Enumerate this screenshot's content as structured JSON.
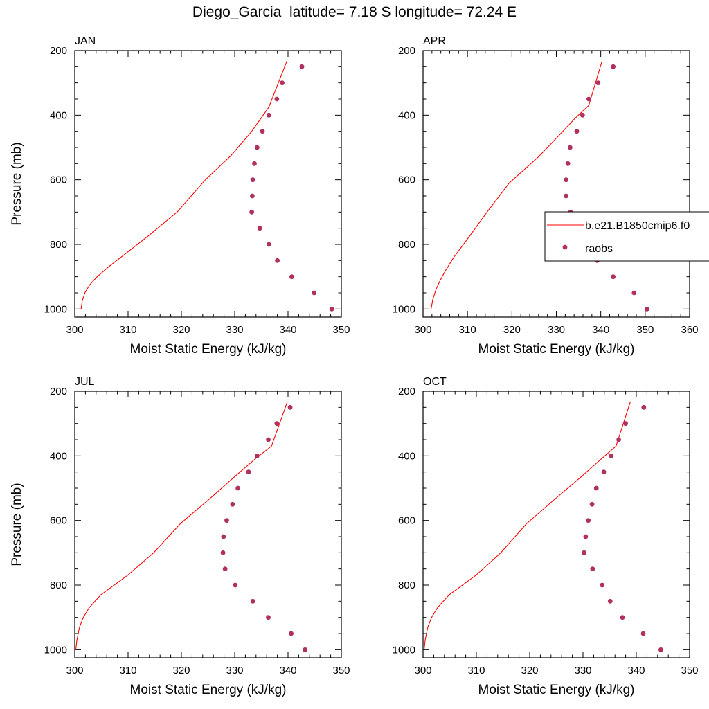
{
  "title": "Diego_Garcia  latitude= 7.18 S longitude= 72.24 E",
  "colors": {
    "model": "#ff0000",
    "raobs": "#b03060",
    "axis": "#000000"
  },
  "legend": {
    "model_label": "b.e21.B1850cmip6.f0",
    "obs_label": "raobs"
  },
  "chart_data": [
    {
      "type": "line",
      "panel": "JAN",
      "xlabel": "Moist Static Energy (kJ/kg)",
      "ylabel": "Pressure (mb)",
      "xlim": [
        300,
        350
      ],
      "ylim": [
        1025,
        200
      ],
      "y_reversed": true,
      "xticks": [
        300,
        310,
        320,
        330,
        340,
        350
      ],
      "yticks": [
        200,
        400,
        600,
        800,
        1000
      ],
      "series": [
        {
          "name": "b.e21.B1850cmip6.f0",
          "style": "line",
          "x": [
            301.2,
            301.4,
            301.9,
            302.8,
            304.2,
            306.3,
            309.8,
            313.7,
            319.2,
            324.5,
            329.3,
            333.2,
            336.4,
            339.8
          ],
          "y": [
            1000,
            975,
            950,
            925,
            900,
            870,
            825,
            775,
            700,
            600,
            525,
            450,
            375,
            232
          ]
        },
        {
          "name": "raobs",
          "style": "markers",
          "x": [
            348.2,
            344.9,
            340.7,
            338.0,
            336.4,
            334.7,
            333.2,
            333.3,
            333.4,
            333.7,
            334.2,
            335.2,
            336.4,
            337.9,
            338.9,
            342.6
          ],
          "y": [
            1000,
            950,
            900,
            850,
            800,
            750,
            700,
            650,
            600,
            550,
            500,
            450,
            400,
            350,
            300,
            250
          ]
        }
      ]
    },
    {
      "type": "line",
      "panel": "APR",
      "xlabel": "Moist Static Energy (kJ/kg)",
      "ylabel": "",
      "xlim": [
        300,
        360
      ],
      "ylim": [
        1025,
        200
      ],
      "y_reversed": true,
      "xticks": [
        300,
        310,
        320,
        330,
        340,
        350,
        360
      ],
      "yticks": [
        200,
        400,
        600,
        800,
        1000
      ],
      "series": [
        {
          "name": "b.e21.B1850cmip6.f0",
          "style": "line",
          "x": [
            301.8,
            302.2,
            302.9,
            303.9,
            305.1,
            306.9,
            310.7,
            314.4,
            319.4,
            325.9,
            330.8,
            334.2,
            337.3,
            340.3
          ],
          "y": [
            1000,
            970,
            940,
            910,
            880,
            840,
            770,
            700,
            610,
            530,
            460,
            410,
            370,
            232
          ]
        },
        {
          "name": "raobs",
          "style": "markers",
          "x": [
            350.4,
            347.5,
            342.8,
            339.2,
            336.0,
            334.5,
            333.2,
            332.2,
            332.2,
            332.6,
            333.1,
            334.6,
            335.9,
            337.3,
            339.4,
            342.8
          ],
          "y": [
            1000,
            950,
            900,
            850,
            800,
            750,
            700,
            650,
            600,
            550,
            500,
            450,
            400,
            350,
            300,
            250
          ]
        }
      ]
    },
    {
      "type": "line",
      "panel": "JUL",
      "xlabel": "Moist Static Energy (kJ/kg)",
      "ylabel": "Pressure (mb)",
      "xlim": [
        300,
        350
      ],
      "ylim": [
        1025,
        200
      ],
      "y_reversed": true,
      "xticks": [
        300,
        310,
        320,
        330,
        340,
        350
      ],
      "yticks": [
        200,
        400,
        600,
        800,
        1000
      ],
      "series": [
        {
          "name": "b.e21.B1850cmip6.f0",
          "style": "line",
          "x": [
            300.2,
            300.4,
            300.9,
            301.6,
            302.7,
            304.9,
            309.9,
            314.8,
            319.8,
            325.5,
            330.3,
            333.8,
            336.9,
            339.9
          ],
          "y": [
            1000,
            970,
            930,
            900,
            870,
            830,
            770,
            700,
            610,
            530,
            460,
            410,
            370,
            232
          ]
        },
        {
          "name": "raobs",
          "style": "markers",
          "x": [
            343.2,
            340.6,
            336.3,
            333.4,
            330.1,
            328.2,
            327.8,
            327.9,
            328.5,
            329.6,
            330.6,
            332.6,
            334.2,
            336.3,
            337.9,
            340.4
          ],
          "y": [
            1000,
            950,
            900,
            850,
            800,
            750,
            700,
            650,
            600,
            550,
            500,
            450,
            400,
            350,
            300,
            250
          ]
        }
      ]
    },
    {
      "type": "line",
      "panel": "OCT",
      "xlabel": "Moist Static Energy (kJ/kg)",
      "ylabel": "",
      "xlim": [
        300,
        350
      ],
      "ylim": [
        1025,
        200
      ],
      "y_reversed": true,
      "xticks": [
        300,
        310,
        320,
        330,
        340,
        350
      ],
      "yticks": [
        200,
        400,
        600,
        800,
        1000
      ],
      "series": [
        {
          "name": "b.e21.B1850cmip6.f0",
          "style": "line",
          "x": [
            300.2,
            300.4,
            300.9,
            301.6,
            302.7,
            304.9,
            309.9,
            314.6,
            319.4,
            325.0,
            330.0,
            333.4,
            336.2,
            338.9
          ],
          "y": [
            1000,
            970,
            930,
            900,
            870,
            830,
            770,
            700,
            610,
            530,
            460,
            410,
            370,
            232
          ]
        },
        {
          "name": "raobs",
          "style": "markers",
          "x": [
            344.6,
            341.3,
            337.4,
            335.1,
            333.6,
            331.8,
            330.2,
            330.5,
            331.0,
            331.7,
            332.5,
            333.9,
            335.3,
            336.7,
            338.0,
            341.4
          ],
          "y": [
            1000,
            950,
            900,
            850,
            800,
            750,
            700,
            650,
            600,
            550,
            500,
            450,
            400,
            350,
            300,
            250
          ]
        }
      ]
    }
  ]
}
